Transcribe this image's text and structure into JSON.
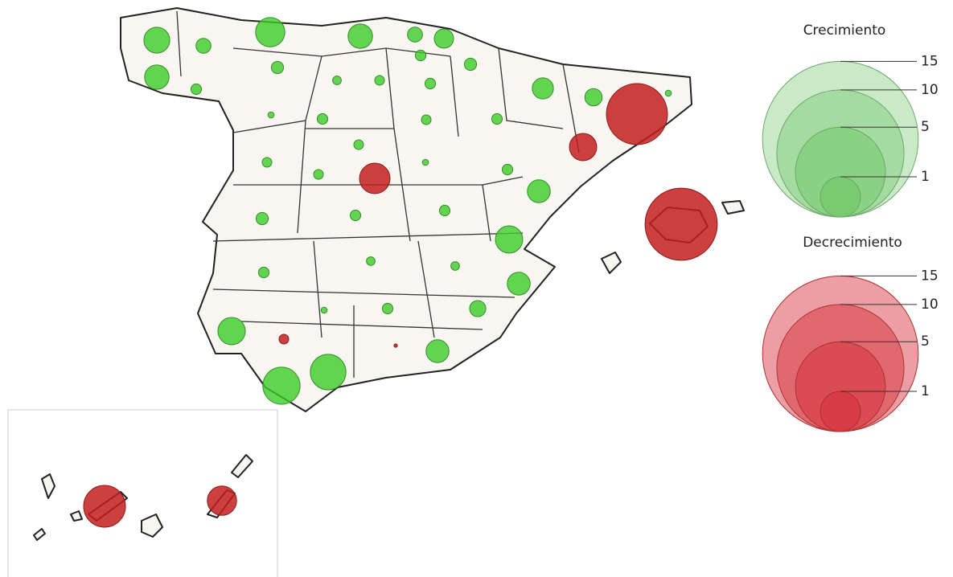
{
  "map": {
    "legend_growth": {
      "title": "Crecimiento",
      "values": [
        15,
        10,
        5,
        1
      ]
    },
    "legend_decline": {
      "title": "Decrecimiento",
      "values": [
        15,
        10,
        5,
        1
      ]
    },
    "growth": [
      1.8,
      0.6,
      2.3,
      1.6,
      0.6,
      1,
      0.3,
      1.6,
      0.3,
      0.4,
      0.2,
      0.25,
      0.3,
      0.4,
      1.2,
      0.8,
      0.1,
      0.1,
      0.3,
      0.25,
      0.3,
      0.25,
      0.1,
      0.25,
      0.25,
      0.3,
      1.4,
      0.4,
      0.3,
      0.3,
      2,
      0.3,
      0.2,
      0.2,
      1.4,
      0.1,
      0.3,
      0.7,
      2,
      1.4,
      3.7,
      3.4
    ],
    "decline": [
      10,
      2,
      2.5,
      14,
      0.25,
      0.03,
      4.7,
      2.3
    ]
  }
}
